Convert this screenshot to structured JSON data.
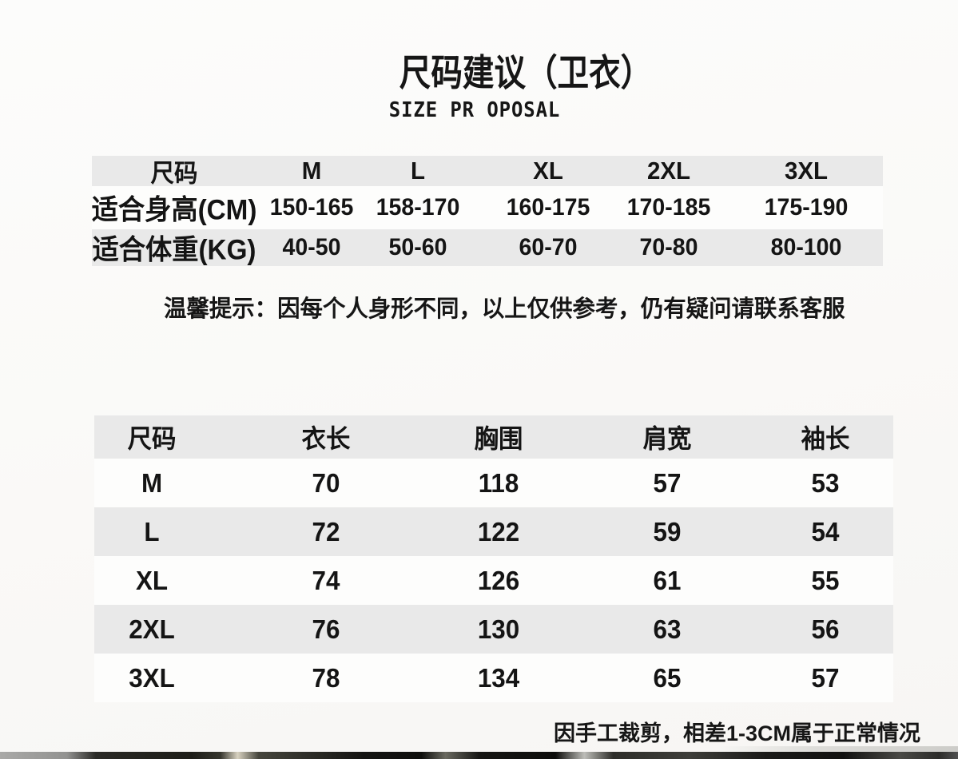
{
  "page": {
    "title": "尺码建议（卫衣）",
    "subtitle": "SIZE PR OPOSAL",
    "tip": "温馨提示：因每个人身形不同，以上仅供参考，仍有疑问请联系客服",
    "footnote": "因手工裁剪，相差1-3CM属于正常情况"
  },
  "colors": {
    "stripe": "#e9e9e9",
    "white_row": "#fdfdfc",
    "text": "#161616",
    "page_bg": "#faf9f7"
  },
  "size_table": {
    "header": [
      "尺码",
      "M",
      "L",
      "XL",
      "2XL",
      "3XL"
    ],
    "rows": [
      {
        "label": "适合身高(CM)",
        "values": [
          "150-165",
          "158-170",
          "160-175",
          "170-185",
          "175-190"
        ]
      },
      {
        "label": "适合体重(KG)",
        "values": [
          "40-50",
          "50-60",
          "60-70",
          "70-80",
          "80-100"
        ]
      }
    ]
  },
  "measure_table": {
    "header": [
      "尺码",
      "衣长",
      "胸围",
      "肩宽",
      "袖长"
    ],
    "rows": [
      {
        "label": "M",
        "values": [
          "70",
          "118",
          "57",
          "53"
        ]
      },
      {
        "label": "L",
        "values": [
          "72",
          "122",
          "59",
          "54"
        ]
      },
      {
        "label": "XL",
        "values": [
          "74",
          "126",
          "61",
          "55"
        ]
      },
      {
        "label": "2XL",
        "values": [
          "76",
          "130",
          "63",
          "56"
        ]
      },
      {
        "label": "3XL",
        "values": [
          "78",
          "134",
          "65",
          "57"
        ]
      }
    ]
  }
}
